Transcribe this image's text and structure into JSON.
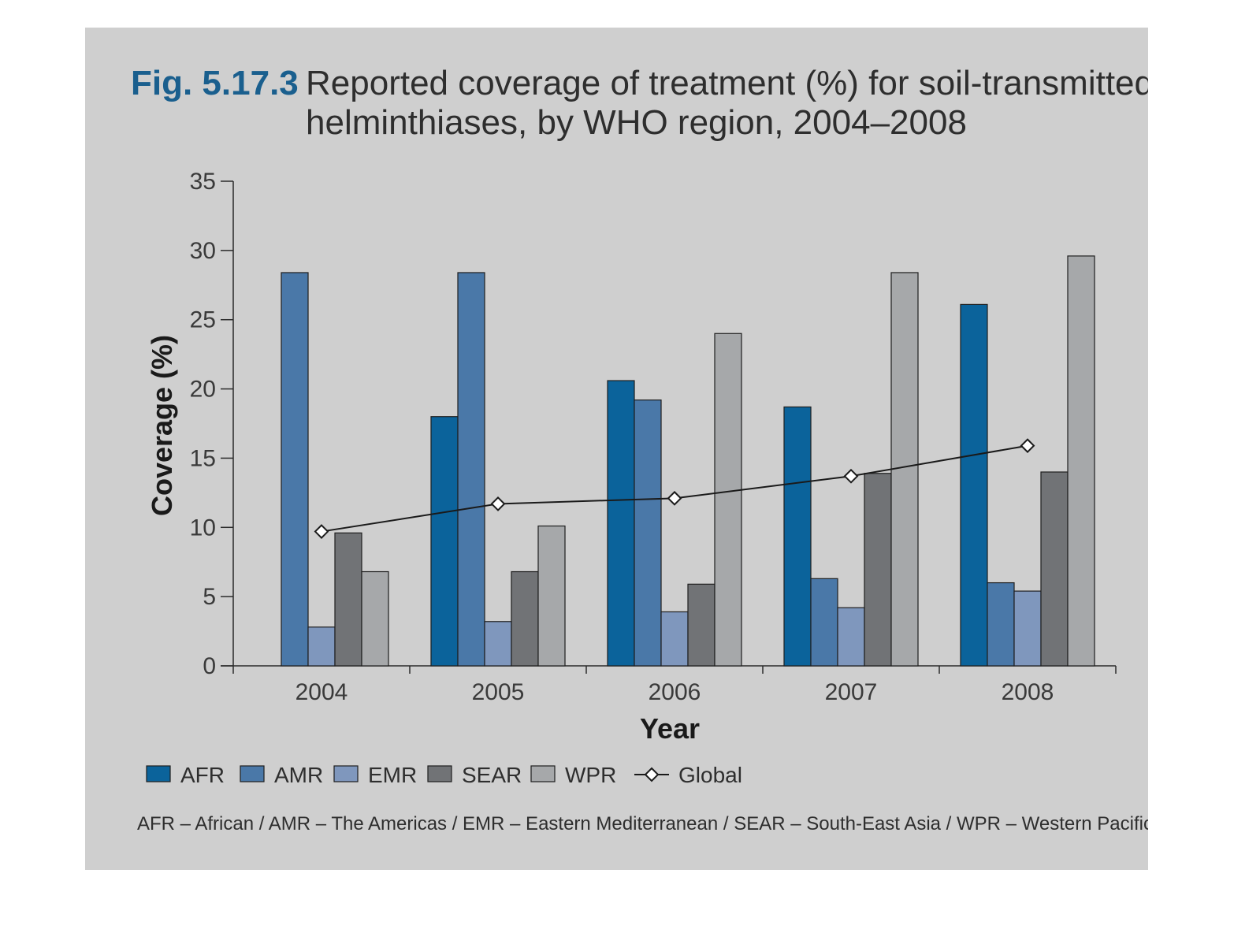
{
  "figure": {
    "label": "Fig. 5.17.3",
    "title_line1": "Reported coverage of treatment (%) for soil-transmitted",
    "title_line2": "helminthiases, by WHO region, 2004–2008",
    "footnote": "AFR – African / AMR – The Americas / EMR – Eastern Mediterranean / SEAR – South-East Asia / WPR – Western Pacific"
  },
  "chart_data": {
    "type": "bar",
    "xlabel": "Year",
    "ylabel": "Coverage (%)",
    "ylim": [
      0,
      35
    ],
    "yticks": [
      0,
      5,
      10,
      15,
      20,
      25,
      30,
      35
    ],
    "categories": [
      "2004",
      "2005",
      "2006",
      "2007",
      "2008"
    ],
    "series": [
      {
        "name": "AFR",
        "color": "#0b639b",
        "values": [
          null,
          18.0,
          20.6,
          18.7,
          26.1
        ]
      },
      {
        "name": "AMR",
        "color": "#4a78a8",
        "values": [
          28.4,
          28.4,
          19.2,
          6.3,
          6.0
        ]
      },
      {
        "name": "EMR",
        "color": "#7f97bd",
        "values": [
          2.8,
          3.2,
          3.9,
          4.2,
          5.4
        ]
      },
      {
        "name": "SEAR",
        "color": "#717376",
        "values": [
          9.6,
          6.8,
          5.9,
          13.9,
          14.0
        ]
      },
      {
        "name": "WPR",
        "color": "#a6a8aa",
        "values": [
          6.8,
          10.1,
          24.0,
          28.4,
          29.6
        ]
      }
    ],
    "line_series": {
      "name": "Global",
      "color": "#1a1a1a",
      "values": [
        9.7,
        11.7,
        12.1,
        13.7,
        15.9
      ]
    },
    "legend_position": "bottom-left",
    "grid": false
  },
  "colors": {
    "panel_background": "#cfcfcf",
    "figure_label": "#1a5f8e"
  }
}
